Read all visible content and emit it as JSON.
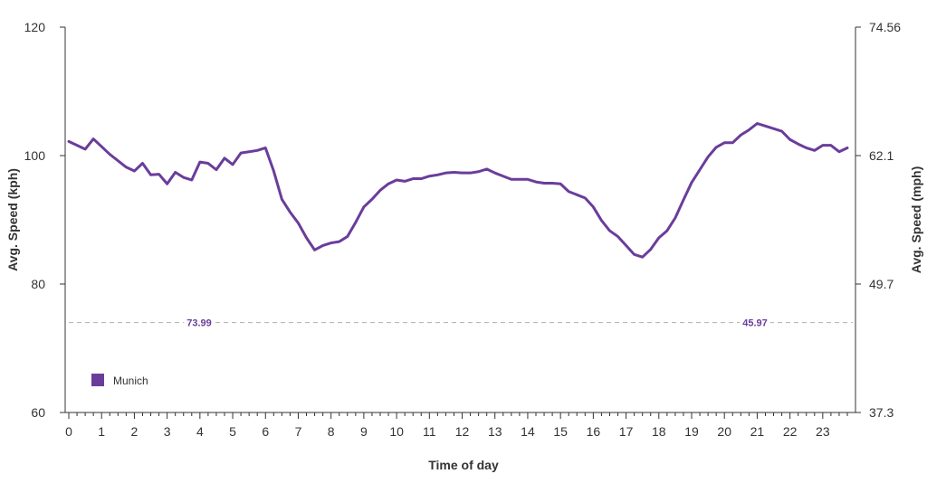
{
  "chart_data": {
    "type": "line",
    "xlabel": "Time of day",
    "ylabel": "Avg. Speed (kph)",
    "ylabel_right": "Avg. Speed (mph)",
    "xlim": [
      0,
      23.75
    ],
    "ylim": [
      60,
      120
    ],
    "y_ticks": [
      60,
      80,
      100,
      120
    ],
    "y_ticks_right": [
      "37.3",
      "49.7",
      "62.1",
      "74.56"
    ],
    "x_ticks": [
      0,
      1,
      2,
      3,
      4,
      5,
      6,
      7,
      8,
      9,
      10,
      11,
      12,
      13,
      14,
      15,
      16,
      17,
      18,
      19,
      20,
      21,
      22,
      23
    ],
    "grid": false,
    "legend_position": "bottom-left",
    "reference_line": {
      "y": 74,
      "label_left": "73.99",
      "label_right": "45.97",
      "color": "#b0b0b0"
    },
    "series": [
      {
        "name": "Munich",
        "color": "#6a3d9a",
        "x": [
          0,
          0.25,
          0.5,
          0.75,
          1,
          1.25,
          1.5,
          1.75,
          2,
          2.25,
          2.5,
          2.75,
          3,
          3.25,
          3.5,
          3.75,
          4,
          4.25,
          4.5,
          4.75,
          5,
          5.25,
          5.5,
          5.75,
          6,
          6.25,
          6.5,
          6.75,
          7,
          7.25,
          7.5,
          7.75,
          8,
          8.25,
          8.5,
          8.75,
          9,
          9.25,
          9.5,
          9.75,
          10,
          10.25,
          10.5,
          10.75,
          11,
          11.25,
          11.5,
          11.75,
          12,
          12.25,
          12.5,
          12.75,
          13,
          13.25,
          13.5,
          13.75,
          14,
          14.25,
          14.5,
          14.75,
          15,
          15.25,
          15.5,
          15.75,
          16,
          16.25,
          16.5,
          16.75,
          17,
          17.25,
          17.5,
          17.75,
          18,
          18.25,
          18.5,
          18.75,
          19,
          19.25,
          19.5,
          19.75,
          20,
          20.25,
          20.5,
          20.75,
          21,
          21.25,
          21.5,
          21.75,
          22,
          22.25,
          22.5,
          22.75,
          23,
          23.25,
          23.5,
          23.75
        ],
        "y": [
          102.2,
          101.6,
          101.0,
          102.6,
          101.4,
          100.2,
          99.2,
          98.2,
          97.6,
          98.8,
          97.0,
          97.1,
          95.6,
          97.4,
          96.6,
          96.2,
          99.0,
          98.8,
          97.8,
          99.6,
          98.6,
          100.4,
          100.6,
          100.8,
          101.2,
          97.6,
          93.2,
          91.2,
          89.5,
          87.2,
          85.3,
          86.0,
          86.4,
          86.6,
          87.4,
          89.6,
          92.0,
          93.2,
          94.6,
          95.6,
          96.2,
          96.0,
          96.4,
          96.4,
          96.8,
          97.0,
          97.3,
          97.4,
          97.3,
          97.3,
          97.5,
          97.9,
          97.3,
          96.8,
          96.3,
          96.3,
          96.3,
          95.9,
          95.7,
          95.7,
          95.6,
          94.4,
          93.9,
          93.4,
          92.0,
          89.9,
          88.3,
          87.4,
          86.0,
          84.6,
          84.2,
          85.4,
          87.2,
          88.3,
          90.3,
          93.1,
          95.8,
          97.8,
          99.8,
          101.3,
          102.0,
          102.0,
          103.2,
          104.0,
          105.0,
          104.6,
          104.2,
          103.8,
          102.5,
          101.8,
          101.2,
          100.8,
          101.6,
          101.6,
          100.6,
          101.2
        ]
      }
    ]
  }
}
